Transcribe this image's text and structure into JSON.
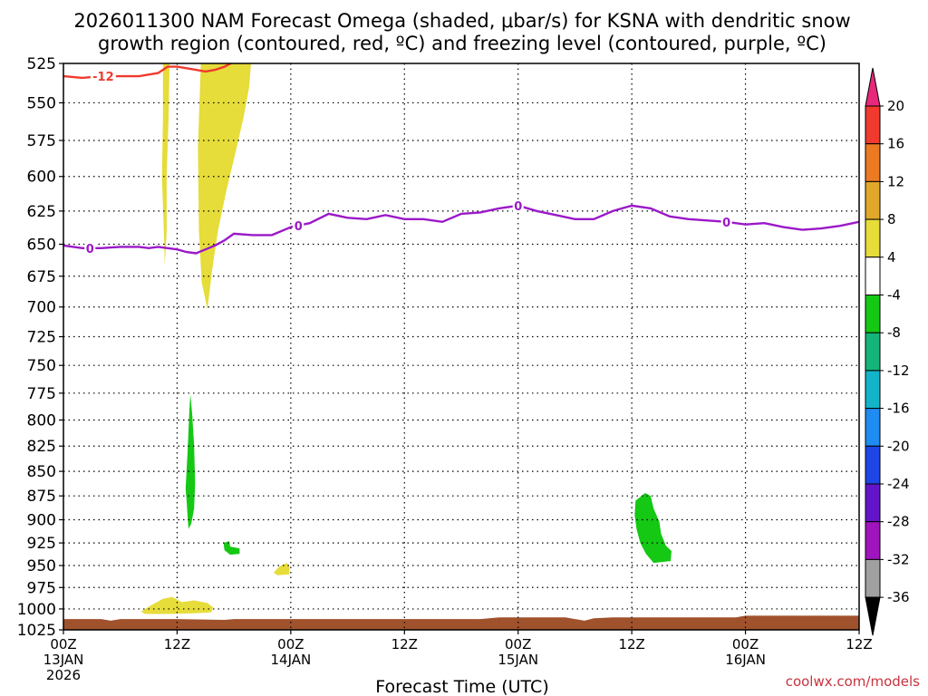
{
  "chart_data": {
    "type": "heatmap",
    "title": "2026011300 NAM Forecast Omega (shaded, μbar/s) for KSNA with dendritic snow",
    "subtitle": "growth region (contoured, red, ºC) and freezing level (contoured, purple, ºC)",
    "xlabel": "Forecast Time (UTC)",
    "ylabel": "",
    "x_range_hours": [
      0,
      84
    ],
    "ylim": [
      1025,
      525
    ],
    "y_ticks": [
      525,
      550,
      575,
      600,
      625,
      650,
      675,
      700,
      725,
      750,
      775,
      800,
      825,
      850,
      875,
      900,
      925,
      950,
      975,
      1000,
      1025
    ],
    "x_ticks": [
      {
        "hour": 0,
        "label": "00Z",
        "sub": "13JAN",
        "sub2": "2026"
      },
      {
        "hour": 12,
        "label": "12Z",
        "sub": "",
        "sub2": ""
      },
      {
        "hour": 24,
        "label": "00Z",
        "sub": "14JAN",
        "sub2": ""
      },
      {
        "hour": 36,
        "label": "12Z",
        "sub": "",
        "sub2": ""
      },
      {
        "hour": 48,
        "label": "00Z",
        "sub": "15JAN",
        "sub2": ""
      },
      {
        "hour": 60,
        "label": "12Z",
        "sub": "",
        "sub2": ""
      },
      {
        "hour": 72,
        "label": "00Z",
        "sub": "16JAN",
        "sub2": ""
      },
      {
        "hour": 84,
        "label": "12Z",
        "sub": "",
        "sub2": ""
      }
    ],
    "grid": true,
    "colorbar": {
      "labels": [
        "20",
        "16",
        "12",
        "8",
        "4",
        "-4",
        "-8",
        "-12",
        "-16",
        "-20",
        "-24",
        "-28",
        "-32",
        "-36"
      ],
      "colors": [
        "#e8287a",
        "#f03a2e",
        "#ec7a22",
        "#e0a82a",
        "#e6dc3a",
        "#ffffff",
        "#14c814",
        "#14b47a",
        "#14b4c8",
        "#1e8cf0",
        "#1e46e6",
        "#6414c8",
        "#a014be",
        "#a0a0a0",
        "#000000"
      ]
    },
    "freezing_level_0C": {
      "color": "#9b19c8",
      "label": "0",
      "hours": [
        0,
        2,
        4,
        6,
        8,
        9,
        10,
        11,
        12,
        13,
        14,
        15,
        16,
        17,
        18,
        20,
        22,
        24,
        26,
        28,
        30,
        32,
        34,
        36,
        38,
        40,
        42,
        44,
        46,
        48,
        50,
        52,
        54,
        56,
        58,
        60,
        62,
        64,
        66,
        68,
        70,
        72,
        74,
        76,
        78,
        80,
        82,
        84
      ],
      "pressure": [
        651,
        653,
        653,
        652,
        652,
        653,
        652,
        653,
        654,
        656,
        657,
        654,
        651,
        647,
        642,
        643,
        643,
        637,
        634,
        627,
        630,
        631,
        628,
        631,
        631,
        633,
        627,
        626,
        623,
        621,
        625,
        628,
        631,
        631,
        625,
        621,
        623,
        629,
        631,
        632,
        633,
        635,
        634,
        637,
        639,
        638,
        636,
        633
      ]
    },
    "dgz_minus12C": {
      "color": "#f03a2e",
      "label": "-12",
      "hours": [
        0,
        2,
        4,
        6,
        8,
        10,
        11,
        12,
        13,
        14,
        15,
        16,
        17,
        18,
        19
      ],
      "pressure": [
        533,
        534,
        533,
        533,
        533,
        531,
        527,
        527,
        528,
        529,
        530,
        529,
        527,
        524,
        523
      ]
    },
    "omega_regions": [
      {
        "value": 6,
        "color": "#e6dc3a",
        "points": [
          [
            10.5,
            525
          ],
          [
            11.2,
            525
          ],
          [
            11.1,
            560
          ],
          [
            10.9,
            600
          ],
          [
            10.9,
            640
          ],
          [
            10.7,
            666
          ],
          [
            10.6,
            640
          ],
          [
            10.4,
            600
          ],
          [
            10.5,
            560
          ]
        ]
      },
      {
        "value": 6,
        "color": "#e6dc3a",
        "points": [
          [
            14.5,
            525
          ],
          [
            19.8,
            525
          ],
          [
            19.6,
            540
          ],
          [
            19.0,
            560
          ],
          [
            18.1,
            585
          ],
          [
            17.2,
            610
          ],
          [
            16.3,
            640
          ],
          [
            15.7,
            670
          ],
          [
            15.2,
            702
          ],
          [
            14.6,
            680
          ],
          [
            14.3,
            640
          ],
          [
            14.2,
            580
          ]
        ]
      },
      {
        "value": 6,
        "color": "#e6dc3a",
        "points": [
          [
            8.2,
            1003
          ],
          [
            9.2,
            996
          ],
          [
            10.5,
            988
          ],
          [
            11.5,
            986
          ],
          [
            12.5,
            992
          ],
          [
            13.8,
            990
          ],
          [
            15.2,
            993
          ],
          [
            15.8,
            998
          ],
          [
            15.6,
            1004
          ],
          [
            14.0,
            1005
          ],
          [
            11.0,
            1006
          ],
          [
            8.6,
            1006
          ]
        ]
      },
      {
        "value": 6,
        "color": "#e6dc3a",
        "points": [
          [
            22.2,
            958
          ],
          [
            22.8,
            951
          ],
          [
            23.6,
            947
          ],
          [
            23.9,
            953
          ],
          [
            23.8,
            960
          ],
          [
            22.6,
            961
          ]
        ]
      },
      {
        "value": -6,
        "color": "#14c814",
        "points": [
          [
            12.9,
            868
          ],
          [
            13.1,
            832
          ],
          [
            13.3,
            790
          ],
          [
            13.4,
            776
          ],
          [
            13.6,
            796
          ],
          [
            13.8,
            825
          ],
          [
            13.9,
            862
          ],
          [
            13.8,
            888
          ],
          [
            13.5,
            904
          ],
          [
            13.2,
            910
          ],
          [
            13.1,
            895
          ],
          [
            13.0,
            880
          ]
        ]
      },
      {
        "value": -6,
        "color": "#14c814",
        "points": [
          [
            16.9,
            925
          ],
          [
            17.5,
            923
          ],
          [
            17.6,
            929
          ],
          [
            18.6,
            931
          ],
          [
            18.6,
            937
          ],
          [
            17.6,
            938
          ],
          [
            17.0,
            933
          ]
        ]
      },
      {
        "value": -6,
        "color": "#14c814",
        "points": [
          [
            60.4,
            880
          ],
          [
            61.4,
            872
          ],
          [
            62.0,
            875
          ],
          [
            62.3,
            888
          ],
          [
            62.9,
            902
          ],
          [
            63.1,
            915
          ],
          [
            63.6,
            928
          ],
          [
            64.2,
            934
          ],
          [
            64.1,
            945
          ],
          [
            62.3,
            947
          ],
          [
            61.5,
            937
          ],
          [
            60.9,
            925
          ],
          [
            60.5,
            910
          ],
          [
            60.3,
            895
          ]
        ]
      }
    ],
    "terrain": {
      "color": "#a0522d",
      "hours": [
        0,
        4,
        5,
        6,
        12,
        17,
        18,
        20,
        44,
        46,
        53,
        55,
        56,
        58,
        71,
        72,
        84
      ],
      "pressure": [
        1012,
        1012,
        1014,
        1012,
        1012,
        1013,
        1012,
        1012,
        1012,
        1010,
        1010,
        1014,
        1011,
        1010,
        1010,
        1008,
        1008
      ]
    }
  },
  "footer": {
    "credit": "coolwx.com/models"
  }
}
